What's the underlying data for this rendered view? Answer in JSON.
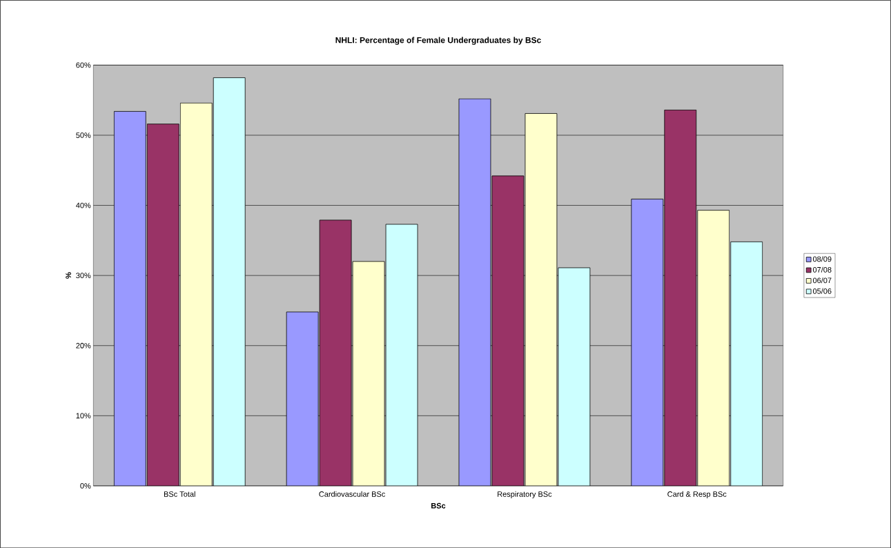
{
  "chart_data": {
    "type": "bar",
    "title": "NHLI: Percentage of Female Undergraduates by BSc",
    "xlabel": "BSc",
    "ylabel": "%",
    "categories": [
      "BSc Total",
      "Cardiovascular BSc",
      "Respiratory BSc",
      "Card & Resp BSc"
    ],
    "series": [
      {
        "name": "08/09",
        "color": "#9999ff",
        "values": [
          53.4,
          24.8,
          55.2,
          40.9
        ]
      },
      {
        "name": "07/08",
        "color": "#993366",
        "values": [
          51.6,
          37.9,
          44.2,
          53.6
        ]
      },
      {
        "name": "06/07",
        "color": "#ffffcc",
        "values": [
          54.6,
          32.0,
          53.1,
          39.3
        ]
      },
      {
        "name": "05/06",
        "color": "#ccffff",
        "values": [
          58.2,
          37.3,
          31.1,
          34.8
        ]
      }
    ],
    "ylim": [
      0,
      60
    ],
    "yticks": [
      {
        "value": 0,
        "label": "0%"
      },
      {
        "value": 10,
        "label": "10%"
      },
      {
        "value": 20,
        "label": "20%"
      },
      {
        "value": 30,
        "label": "30%"
      },
      {
        "value": 40,
        "label": "40%"
      },
      {
        "value": 50,
        "label": "50%"
      },
      {
        "value": 60,
        "label": "60%"
      }
    ],
    "grid": "y",
    "legend": "right"
  }
}
